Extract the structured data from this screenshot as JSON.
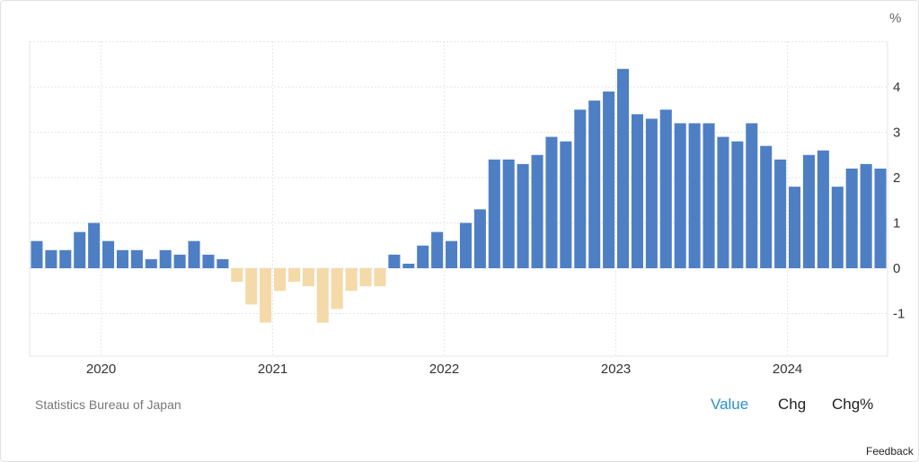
{
  "unit_label": "%",
  "source": "Statistics Bureau of Japan",
  "tabs": {
    "value": "Value",
    "chg": "Chg",
    "chgp": "Chg%"
  },
  "feedback": "Feedback",
  "colors": {
    "positive": "#4e7fc4",
    "negative": "#f4d9a9",
    "active_tab": "#2b8fd6",
    "tab": "#222222",
    "grid": "#e6e6e6"
  },
  "chart_data": {
    "type": "bar",
    "ylim": [
      -2,
      5
    ],
    "y_ticks": [
      -1,
      0,
      1,
      2,
      3,
      4
    ],
    "x_ticks": [
      "2020",
      "2021",
      "2022",
      "2023",
      "2024"
    ],
    "categories": [
      "2019-08",
      "2019-09",
      "2019-10",
      "2019-11",
      "2019-12",
      "2020-01",
      "2020-02",
      "2020-03",
      "2020-04",
      "2020-05",
      "2020-06",
      "2020-07",
      "2020-08",
      "2020-09",
      "2020-10",
      "2020-11",
      "2020-12",
      "2021-01",
      "2021-02",
      "2021-03",
      "2021-04",
      "2021-05",
      "2021-06",
      "2021-07",
      "2021-08",
      "2021-09",
      "2021-10",
      "2021-11",
      "2021-12",
      "2022-01",
      "2022-02",
      "2022-03",
      "2022-04",
      "2022-05",
      "2022-06",
      "2022-07",
      "2022-08",
      "2022-09",
      "2022-10",
      "2022-11",
      "2022-12",
      "2023-01",
      "2023-02",
      "2023-03",
      "2023-04",
      "2023-05",
      "2023-06",
      "2023-07",
      "2023-08",
      "2023-09",
      "2023-10",
      "2023-11",
      "2023-12",
      "2024-01",
      "2024-02",
      "2024-03",
      "2024-04",
      "2024-05",
      "2024-06",
      "2024-07"
    ],
    "values": [
      0.6,
      0.4,
      0.4,
      0.8,
      1.0,
      0.6,
      0.4,
      0.4,
      0.2,
      0.4,
      0.3,
      0.6,
      0.3,
      0.2,
      -0.3,
      -0.8,
      -1.2,
      -0.5,
      -0.3,
      -0.4,
      -1.2,
      -0.9,
      -0.5,
      -0.4,
      -0.4,
      0.3,
      0.1,
      0.5,
      0.8,
      0.6,
      1.0,
      1.3,
      2.4,
      2.4,
      2.3,
      2.5,
      2.9,
      2.8,
      3.5,
      3.7,
      3.9,
      4.4,
      3.4,
      3.3,
      3.5,
      3.2,
      3.2,
      3.2,
      2.9,
      2.8,
      3.2,
      2.7,
      2.4,
      1.8,
      2.5,
      2.6,
      1.8,
      2.2,
      2.3,
      2.2
    ]
  }
}
